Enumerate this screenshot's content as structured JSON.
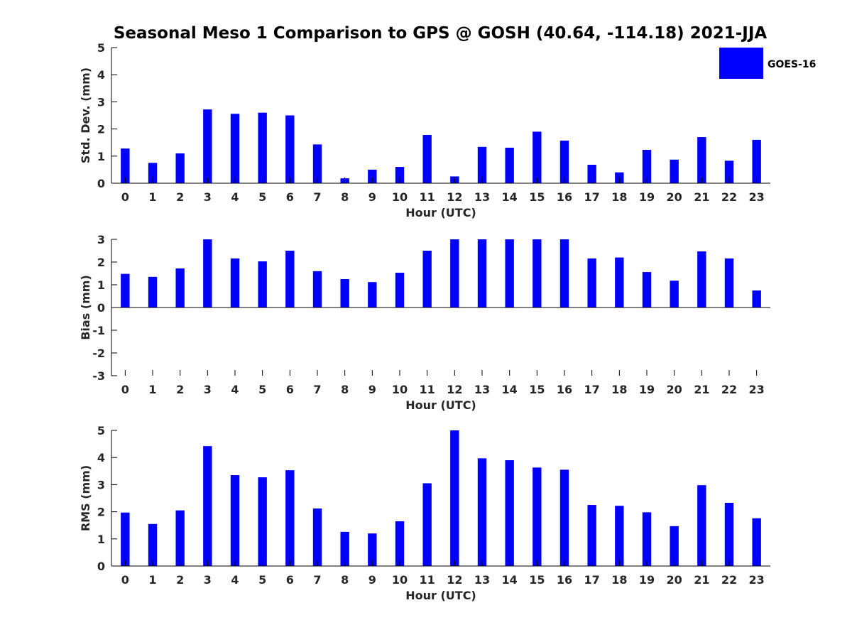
{
  "figure": {
    "title": "Seasonal Meso 1 Comparison to GPS @ GOSH (40.64, -114.18) 2021-JJA",
    "bar_color": "#0000ff",
    "legend": {
      "label": "GOES-16",
      "placement": "top-right"
    }
  },
  "chart_data": [
    {
      "type": "bar",
      "title": "Seasonal Meso 1 Comparison to GPS @ GOSH (40.64, -114.18) 2021-JJA",
      "xlabel": "Hour (UTC)",
      "ylabel": "Std. Dev. (mm)",
      "ylim": [
        0,
        5
      ],
      "yticks": [
        0,
        1,
        2,
        3,
        4,
        5
      ],
      "categories": [
        "0",
        "1",
        "2",
        "3",
        "4",
        "5",
        "6",
        "7",
        "8",
        "9",
        "10",
        "11",
        "12",
        "13",
        "14",
        "15",
        "16",
        "17",
        "18",
        "19",
        "20",
        "21",
        "22",
        "23"
      ],
      "series": [
        {
          "name": "GOES-16",
          "color": "#0000ff",
          "values": [
            1.28,
            0.75,
            1.1,
            2.72,
            2.56,
            2.6,
            2.5,
            1.43,
            0.18,
            0.5,
            0.6,
            1.78,
            0.25,
            1.34,
            1.31,
            1.9,
            1.57,
            0.68,
            0.4,
            1.23,
            0.87,
            1.7,
            0.83,
            1.6
          ]
        }
      ],
      "legend": "top-right",
      "grid": false
    },
    {
      "type": "bar",
      "xlabel": "Hour (UTC)",
      "ylabel": "Bias (mm)",
      "ylim": [
        -3,
        3
      ],
      "yticks": [
        -3,
        -2,
        -1,
        0,
        1,
        2,
        3
      ],
      "categories": [
        "0",
        "1",
        "2",
        "3",
        "4",
        "5",
        "6",
        "7",
        "8",
        "9",
        "10",
        "11",
        "12",
        "13",
        "14",
        "15",
        "16",
        "17",
        "18",
        "19",
        "20",
        "21",
        "22",
        "23"
      ],
      "series": [
        {
          "name": "GOES-16",
          "color": "#0000ff",
          "values": [
            1.48,
            1.35,
            1.72,
            3.0,
            2.16,
            2.03,
            2.5,
            1.6,
            1.25,
            1.12,
            1.53,
            2.5,
            3.0,
            3.0,
            3.0,
            3.0,
            3.0,
            2.16,
            2.2,
            1.56,
            1.18,
            2.47,
            2.16,
            0.75
          ]
        }
      ],
      "grid": false
    },
    {
      "type": "bar",
      "xlabel": "Hour (UTC)",
      "ylabel": "RMS (mm)",
      "ylim": [
        0,
        5
      ],
      "yticks": [
        0,
        1,
        2,
        3,
        4,
        5
      ],
      "categories": [
        "0",
        "1",
        "2",
        "3",
        "4",
        "5",
        "6",
        "7",
        "8",
        "9",
        "10",
        "11",
        "12",
        "13",
        "14",
        "15",
        "16",
        "17",
        "18",
        "19",
        "20",
        "21",
        "22",
        "23"
      ],
      "series": [
        {
          "name": "GOES-16",
          "color": "#0000ff",
          "values": [
            1.97,
            1.55,
            2.05,
            4.42,
            3.35,
            3.27,
            3.53,
            2.12,
            1.26,
            1.2,
            1.65,
            3.05,
            5.0,
            3.97,
            3.9,
            3.63,
            3.55,
            2.25,
            2.22,
            1.98,
            1.47,
            2.98,
            2.33,
            1.76
          ]
        }
      ],
      "grid": false
    }
  ]
}
